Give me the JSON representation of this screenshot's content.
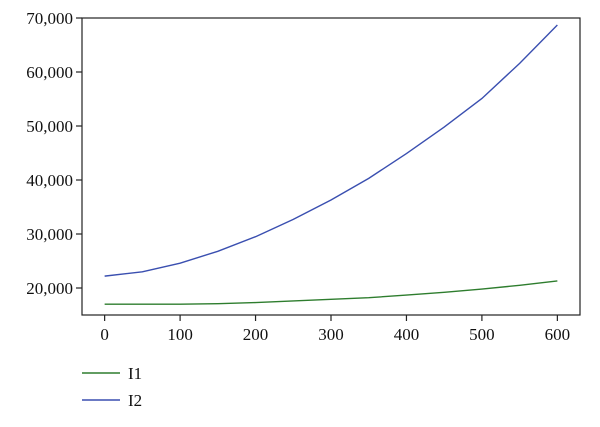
{
  "chart_data": {
    "type": "line",
    "title": "",
    "xlabel": "",
    "ylabel": "",
    "xlim": [
      -30,
      630
    ],
    "ylim": [
      15000,
      70000
    ],
    "x_ticks": [
      0,
      100,
      200,
      300,
      400,
      500,
      600
    ],
    "y_ticks": [
      20000,
      30000,
      40000,
      50000,
      60000,
      70000
    ],
    "x_tick_labels": [
      "0",
      "100",
      "200",
      "300",
      "400",
      "500",
      "600"
    ],
    "y_tick_labels": [
      "20,000",
      "30,000",
      "40,000",
      "50,000",
      "60,000",
      "70,000"
    ],
    "grid": false,
    "legend_position": "bottom-left",
    "x": [
      0,
      50,
      100,
      150,
      200,
      250,
      300,
      350,
      400,
      450,
      500,
      550,
      600
    ],
    "series": [
      {
        "name": "I1",
        "color": "#2e7d2e",
        "values": [
          17000,
          17000,
          17000,
          17100,
          17300,
          17600,
          17900,
          18200,
          18700,
          19200,
          19800,
          20500,
          21300
        ]
      },
      {
        "name": "I2",
        "color": "#3a4fb0",
        "values": [
          22200,
          23000,
          24600,
          26800,
          29500,
          32700,
          36300,
          40300,
          44900,
          49800,
          55100,
          61600,
          68700
        ]
      }
    ]
  }
}
